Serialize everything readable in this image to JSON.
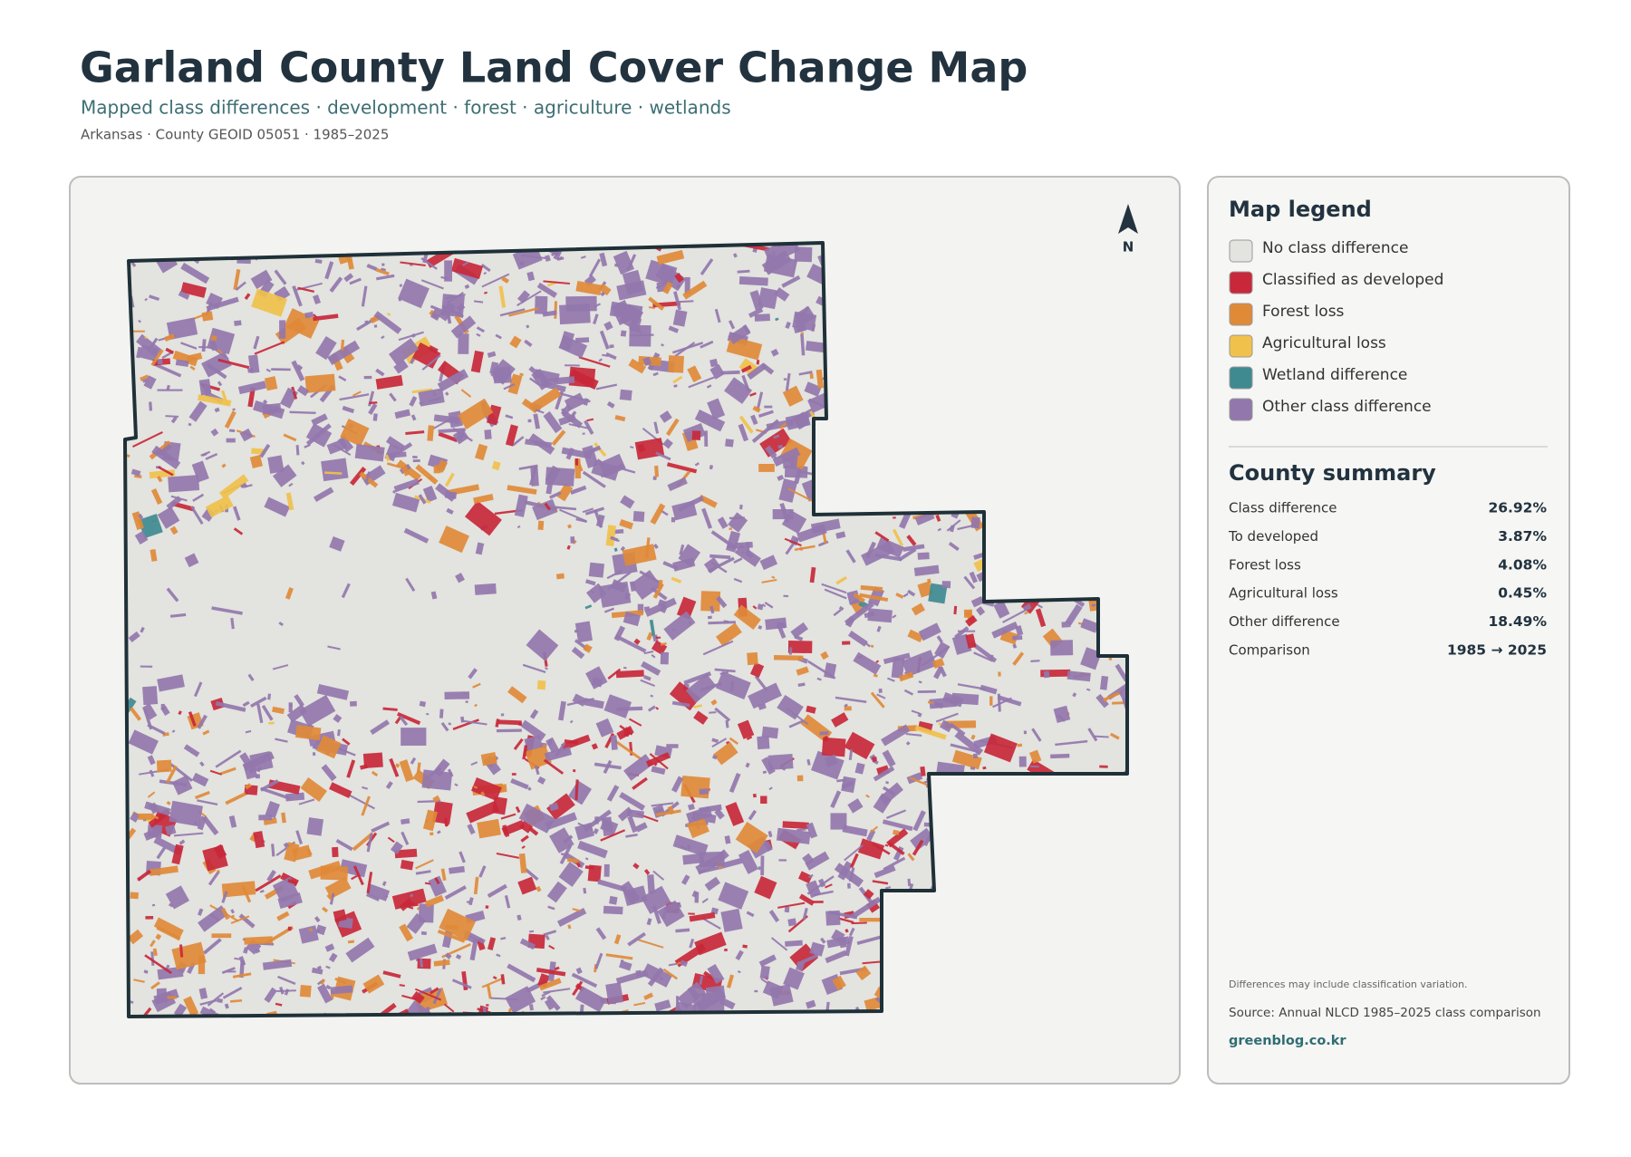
{
  "header": {
    "title": "Garland County Land Cover Change Map",
    "subtitle": "Mapped class differences · development · forest · agriculture · wetlands",
    "meta": "Arkansas · County GEOID 05051 · 1985–2025"
  },
  "map": {
    "north_label": "N"
  },
  "legend": {
    "title": "Map legend",
    "items": [
      {
        "label": "No class difference",
        "color": "#e3e3df"
      },
      {
        "label": "Classified as developed",
        "color": "#c8283a"
      },
      {
        "label": "Forest loss",
        "color": "#e08a38"
      },
      {
        "label": "Agricultural loss",
        "color": "#f0c14b"
      },
      {
        "label": "Wetland difference",
        "color": "#3f8a90"
      },
      {
        "label": "Other class difference",
        "color": "#9277ad"
      }
    ]
  },
  "summary": {
    "title": "County summary",
    "rows": [
      {
        "label": "Class difference",
        "value": "26.92%"
      },
      {
        "label": "To developed",
        "value": "3.87%"
      },
      {
        "label": "Forest loss",
        "value": "4.08%"
      },
      {
        "label": "Agricultural loss",
        "value": "0.45%"
      },
      {
        "label": "Other difference",
        "value": "18.49%"
      },
      {
        "label": "Comparison",
        "value": "1985 → 2025"
      }
    ]
  },
  "notes": {
    "caveat": "Differences may include classification variation.",
    "source": "Source: Annual NLCD 1985–2025 class comparison",
    "site": "greenblog.co.kr"
  }
}
